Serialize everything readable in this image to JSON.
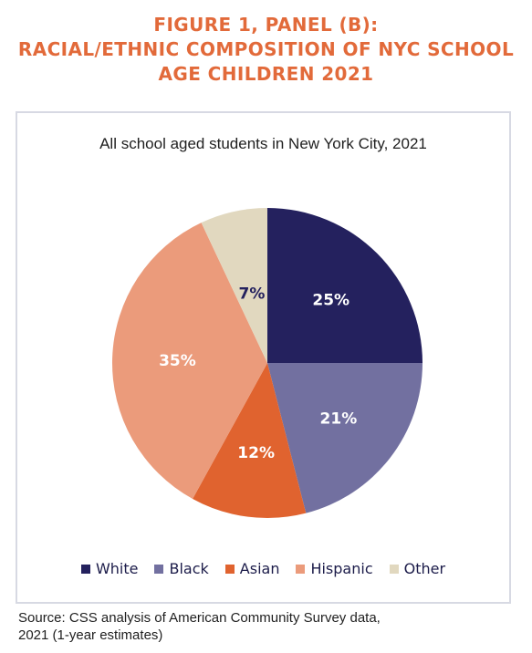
{
  "header": {
    "title_line1": "FIGURE 1, PANEL (B):",
    "title_line2": "RACIAL/ETHNIC COMPOSITION OF NYC SCHOOL",
    "title_line3": "AGE CHILDREN 2021"
  },
  "colors": {
    "title": "#e26a3a",
    "White": "#24215e",
    "Black": "#7270a0",
    "Asian": "#e0632f",
    "Hispanic": "#eb9b7b",
    "Other": "#e1d8bf"
  },
  "chart_data": {
    "type": "pie",
    "title": "All school aged students in New York City, 2021",
    "categories": [
      "White",
      "Black",
      "Asian",
      "Hispanic",
      "Other"
    ],
    "values": [
      25,
      21,
      12,
      35,
      7
    ],
    "labels": [
      "25%",
      "21%",
      "12%",
      "35%",
      "7%"
    ],
    "legend_position": "bottom"
  },
  "footer": {
    "source_line1": "Source: CSS analysis of American Community Survey data,",
    "source_line2": "2021 (1-year estimates)"
  }
}
